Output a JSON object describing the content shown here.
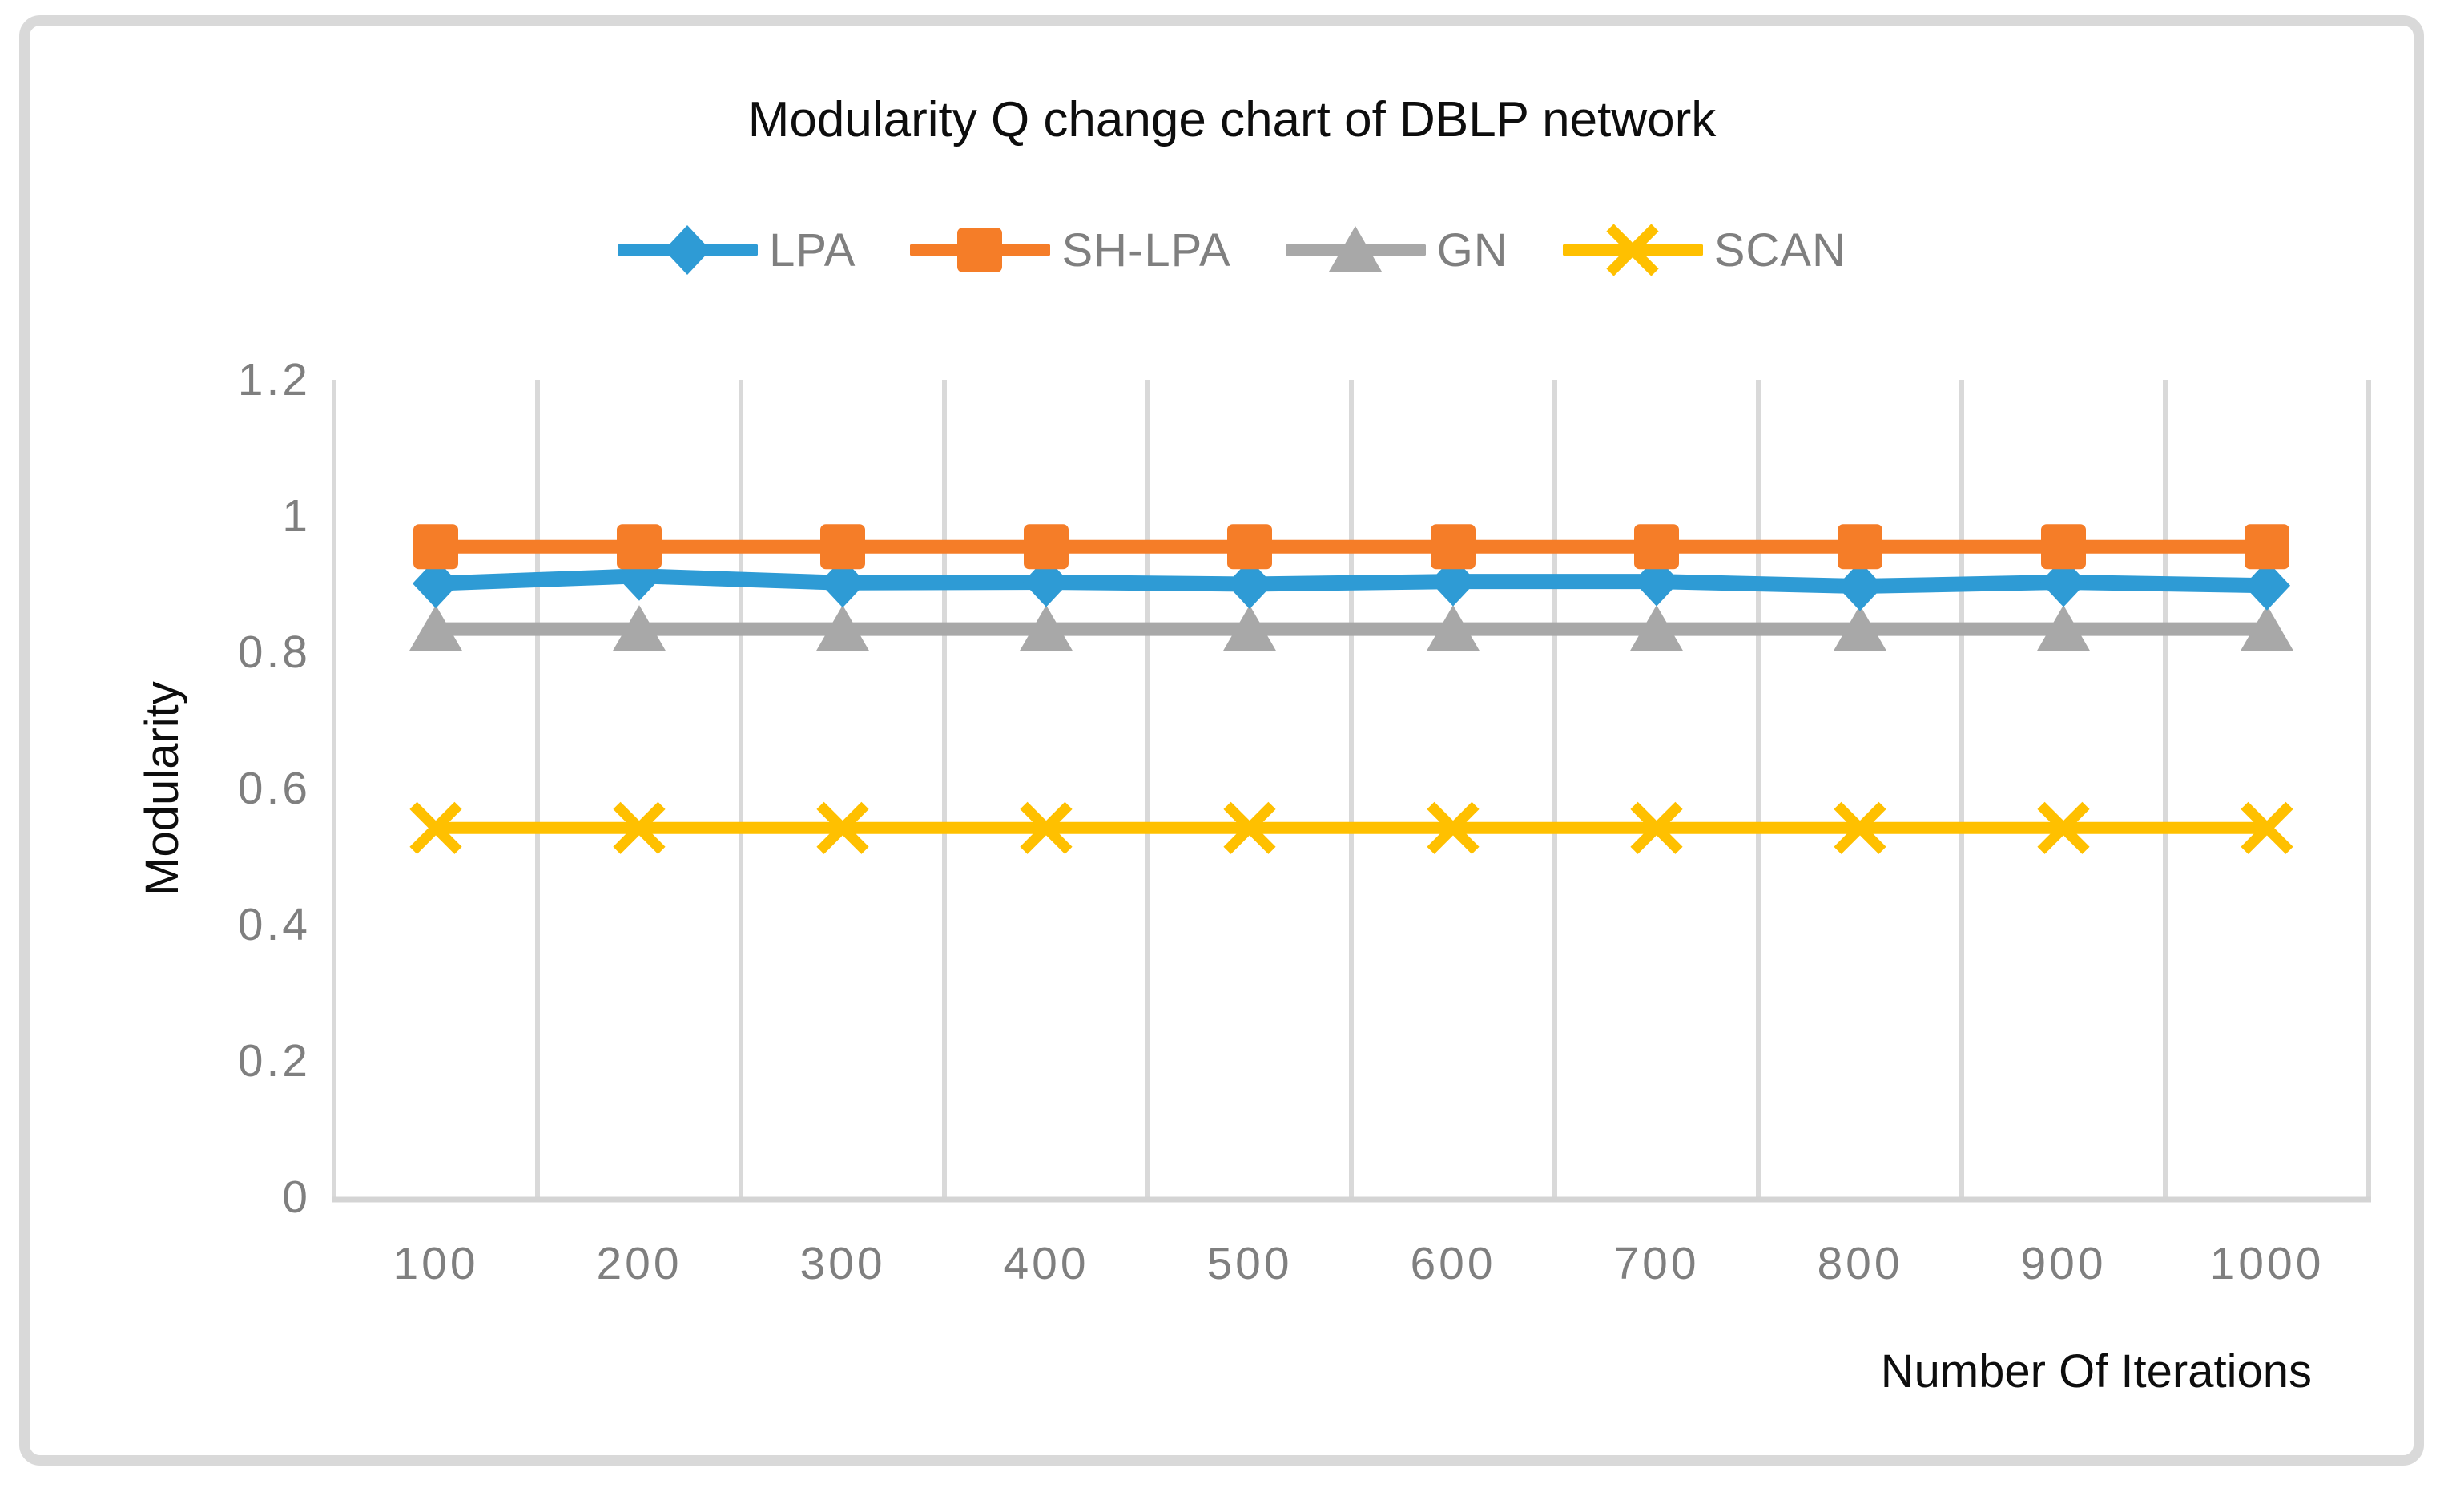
{
  "title": "Modularity Q change chart of DBLP network",
  "axes": {
    "x_title": "Number Of Iterations",
    "y_title": "Modularity"
  },
  "chart_data": {
    "type": "line",
    "title": "Modularity Q change chart of DBLP network",
    "xlabel": "Number Of Iterations",
    "ylabel": "Modularity",
    "categories": [
      100,
      200,
      300,
      400,
      500,
      600,
      700,
      800,
      900,
      1000
    ],
    "series": [
      {
        "name": "LPA",
        "color": "#2E9BD5",
        "marker": "diamond",
        "values": [
          0.901,
          0.912,
          0.902,
          0.903,
          0.9,
          0.904,
          0.904,
          0.897,
          0.903,
          0.898
        ]
      },
      {
        "name": "SH-LPA",
        "color": "#F57D28",
        "marker": "square",
        "values": [
          0.955,
          0.955,
          0.955,
          0.955,
          0.955,
          0.955,
          0.955,
          0.955,
          0.955,
          0.955
        ]
      },
      {
        "name": "GN",
        "color": "#A8A8A8",
        "marker": "triangle",
        "values": [
          0.834,
          0.834,
          0.834,
          0.834,
          0.834,
          0.834,
          0.834,
          0.834,
          0.834,
          0.834
        ]
      },
      {
        "name": "SCAN",
        "color": "#FFC000",
        "marker": "x",
        "values": [
          0.542,
          0.542,
          0.542,
          0.542,
          0.542,
          0.542,
          0.542,
          0.542,
          0.542,
          0.542
        ]
      }
    ],
    "ylim": [
      0,
      1.2
    ],
    "yticks": [
      {
        "v": 0,
        "label": "0"
      },
      {
        "v": 0.2,
        "label": "0.2"
      },
      {
        "v": 0.4,
        "label": "0.4"
      },
      {
        "v": 0.6,
        "label": "0.6"
      },
      {
        "v": 0.8,
        "label": "0.8"
      },
      {
        "v": 1,
        "label": "1"
      },
      {
        "v": 1.2,
        "label": "1.2"
      }
    ],
    "grid": "vertical-only",
    "legend_position": "top",
    "draw_order": [
      "SCAN",
      "GN",
      "LPA",
      "SH-LPA"
    ]
  },
  "style": {
    "background": "#FFFFFF",
    "border_color": "#D9D9D9",
    "gridline_color": "#D9D9D9",
    "axis_line_color": "#D4D4D4",
    "tick_label_color": "#7F7F7F",
    "legend_label_color": "#7F7F7F",
    "title_color": "#0D0D0D"
  }
}
